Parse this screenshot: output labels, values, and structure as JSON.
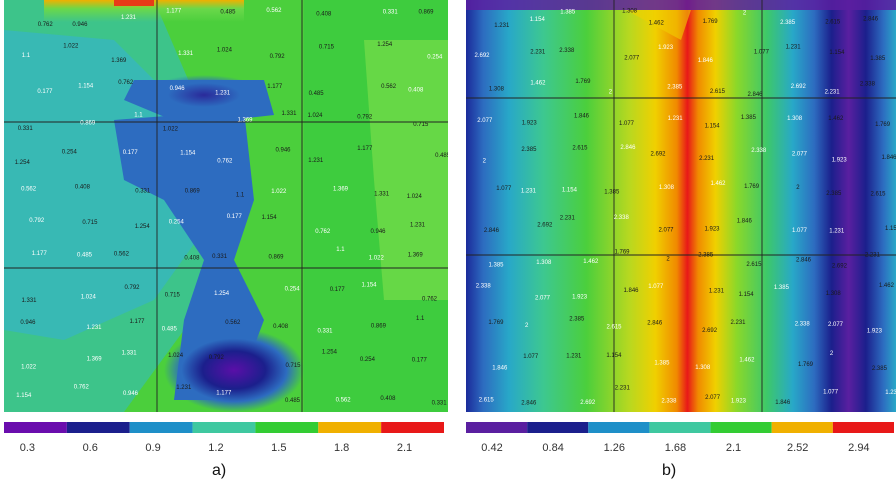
{
  "chart_data": [
    {
      "type": "heatmap",
      "panel_label": "a)",
      "colorbar_ticks": [
        "0.3",
        "0.6",
        "0.9",
        "1.2",
        "1.5",
        "1.8",
        "2.1"
      ],
      "colors": [
        "#6a0dad",
        "#1b1f8c",
        "#1e8fc8",
        "#3fc8a0",
        "#33cc33",
        "#f0b000",
        "#e81818"
      ],
      "grid": true,
      "sample_values": [
        "0.762",
        "0.946",
        "1.231",
        "1.177",
        "0.485",
        "0.562",
        "0.408",
        "0.331",
        "0.869",
        "1.1",
        "1.022",
        "1.369",
        "1.331",
        "1.024",
        "0.792",
        "0.715",
        "1.254",
        "0.254",
        "0.177",
        "1.154"
      ]
    },
    {
      "type": "heatmap",
      "panel_label": "b)",
      "colorbar_ticks": [
        "0.42",
        "0.84",
        "1.26",
        "1.68",
        "2.1",
        "2.52",
        "2.94"
      ],
      "colors": [
        "#5a1fa0",
        "#1b1f8c",
        "#1e8fc8",
        "#3fc8a0",
        "#33cc33",
        "#f0b000",
        "#e81818"
      ],
      "grid": true,
      "sample_values": [
        "1.231",
        "1.154",
        "1.385",
        "1.308",
        "1.462",
        "1.769",
        "2",
        "2.385",
        "2.615",
        "2.846",
        "2.692",
        "2.231",
        "2.338",
        "2.077",
        "1.923",
        "1.846",
        "1.077"
      ]
    }
  ]
}
